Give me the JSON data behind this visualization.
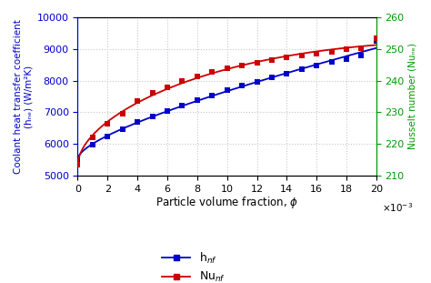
{
  "phi": [
    0,
    0.001,
    0.002,
    0.003,
    0.004,
    0.005,
    0.006,
    0.007,
    0.008,
    0.009,
    0.01,
    0.011,
    0.012,
    0.013,
    0.014,
    0.015,
    0.016,
    0.017,
    0.018,
    0.019,
    0.02
  ],
  "h_nf": [
    5520,
    5980,
    6230,
    6460,
    6680,
    6870,
    7050,
    7220,
    7390,
    7540,
    7690,
    7830,
    7970,
    8100,
    8230,
    8350,
    8470,
    8580,
    8690,
    8800,
    9250
  ],
  "Nu_nf": [
    213.5,
    222.0,
    226.5,
    229.5,
    233.5,
    236.0,
    238.0,
    239.8,
    241.3,
    242.7,
    243.8,
    244.8,
    245.7,
    246.5,
    247.3,
    248.0,
    248.6,
    249.2,
    249.8,
    250.3,
    253.5
  ],
  "h_color": "#0000cc",
  "Nu_color": "#cc0000",
  "left_color": "#0000cc",
  "right_color": "#009900",
  "ylim_left": [
    5000,
    10000
  ],
  "ylim_right": [
    210,
    260
  ],
  "xlim": [
    0,
    0.02
  ],
  "xticks": [
    0,
    0.002,
    0.004,
    0.006,
    0.008,
    0.01,
    0.012,
    0.014,
    0.016,
    0.018,
    0.02
  ],
  "xtick_labels": [
    "0",
    "2",
    "4",
    "6",
    "8",
    "10",
    "12",
    "14",
    "16",
    "18",
    "20"
  ],
  "yticks_left": [
    5000,
    6000,
    7000,
    8000,
    9000,
    10000
  ],
  "yticks_right": [
    210,
    220,
    230,
    240,
    250,
    260
  ],
  "left_ylabel_line1": "Coolant heat transfer coefficient",
  "left_ylabel_line2": "(hₙₑ) (W/m²K)",
  "right_ylabel": "Nusselt number (Nuₙₑ)",
  "xlabel": "Particle volume fraction, ϕ",
  "legend_h": "h$_{nf}$",
  "legend_Nu": "Nu$_{nf}$",
  "grid_color": "#c8c8c8",
  "bg_color": "#ffffff"
}
